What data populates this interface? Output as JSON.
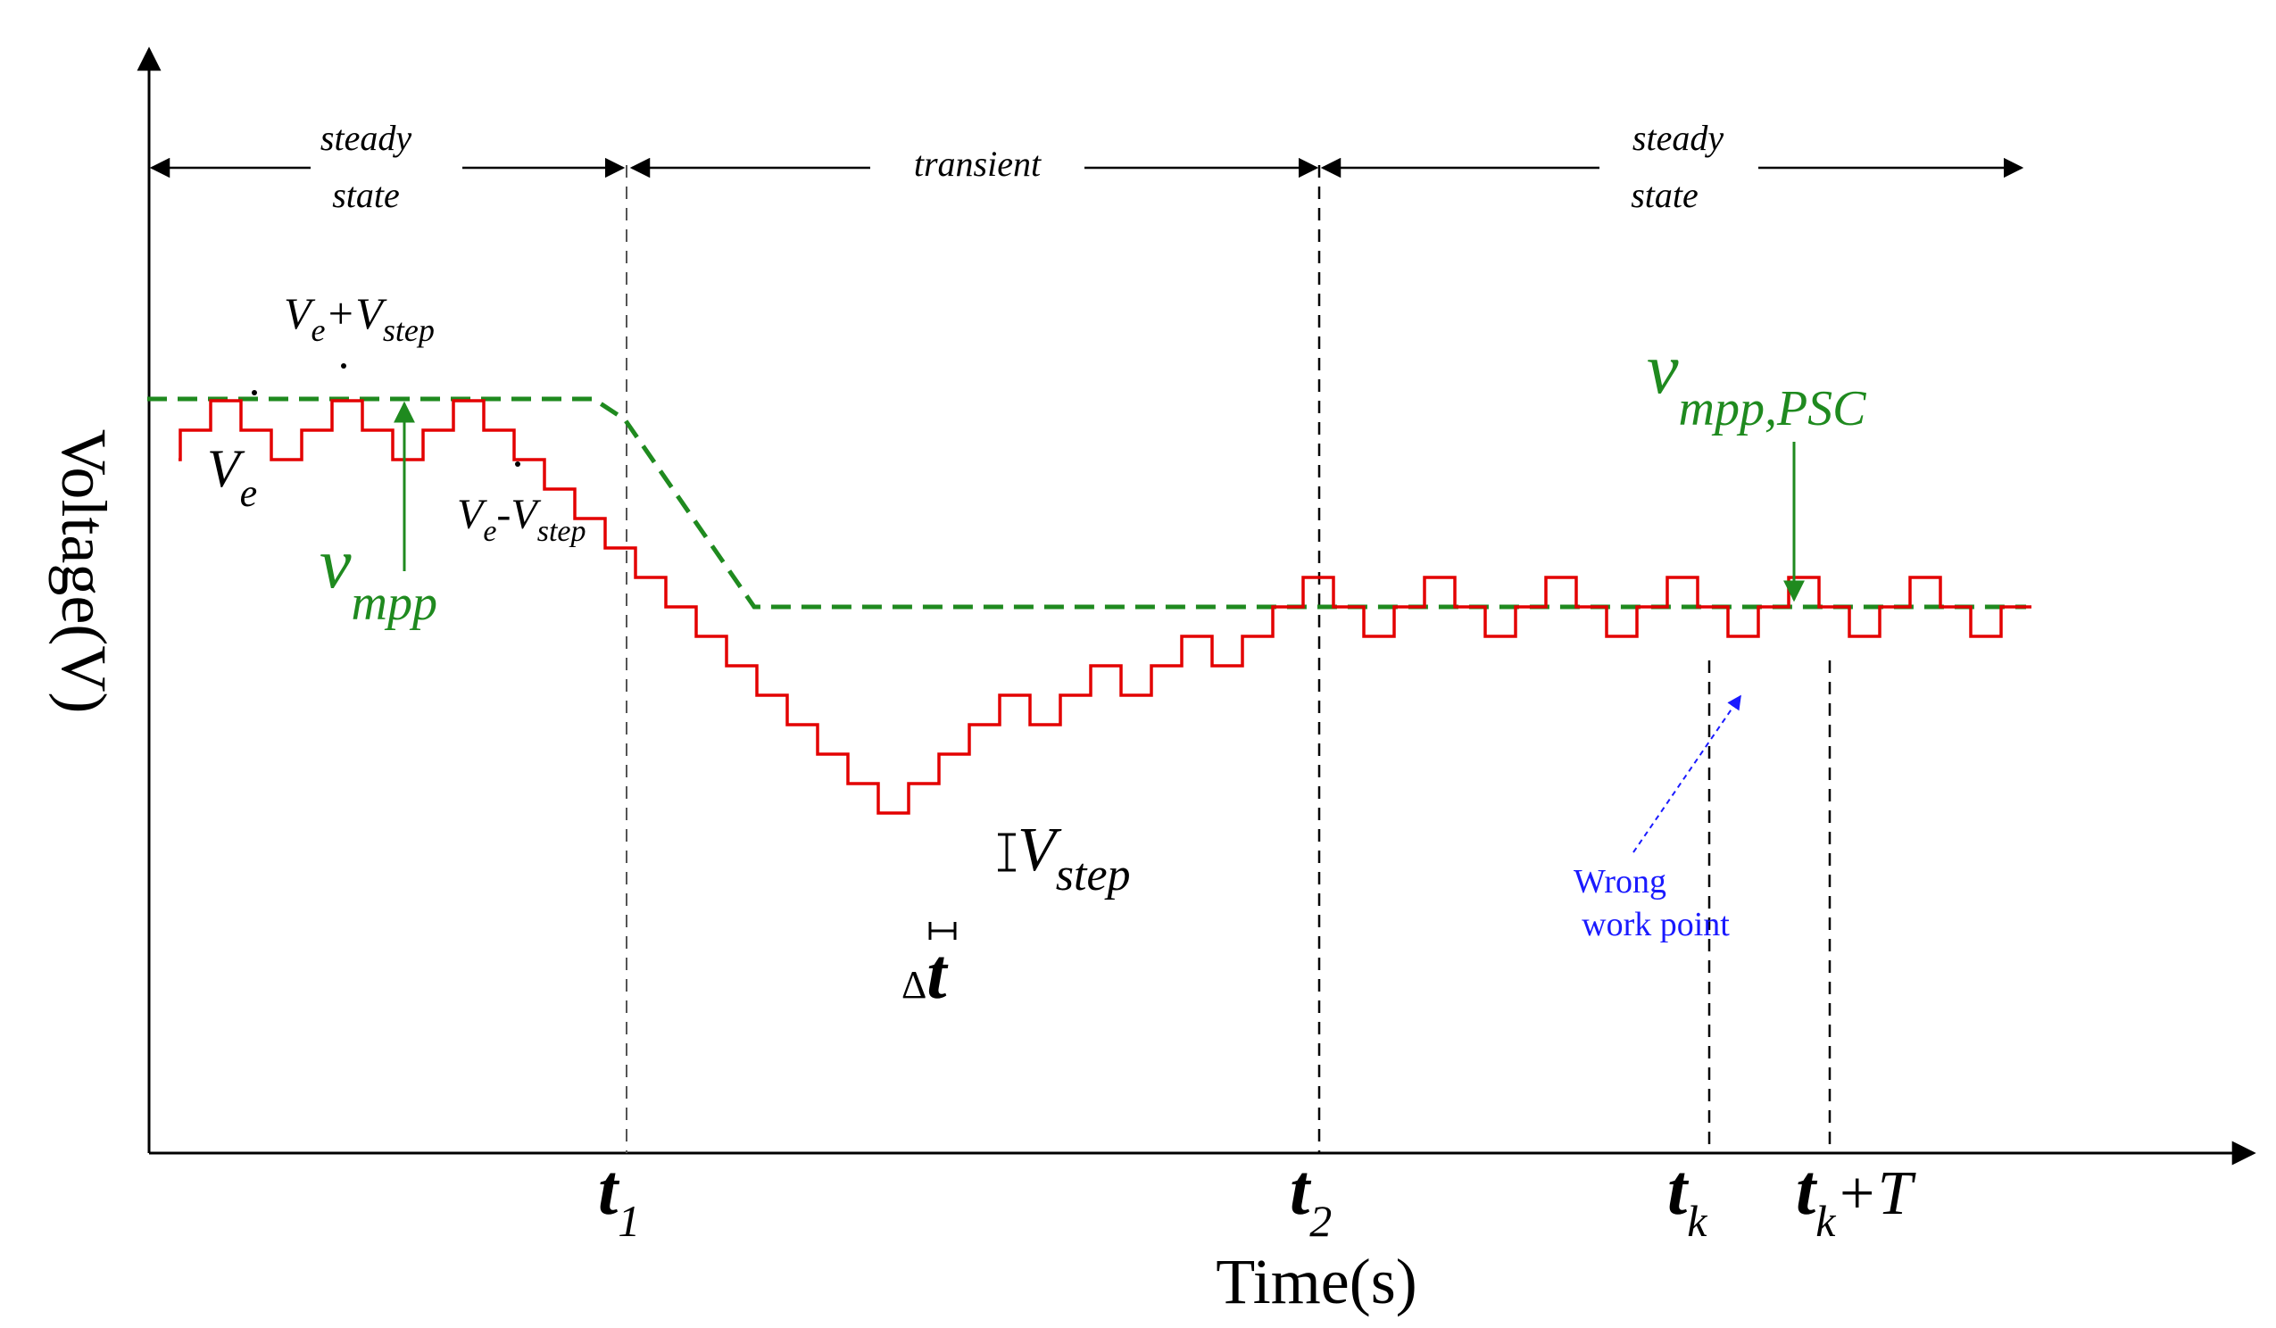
{
  "axes": {
    "x_label": "Time(s)",
    "y_label": "Voltage(V)"
  },
  "regions": {
    "left_steady": {
      "line1": "steady",
      "line2": "state"
    },
    "transient": {
      "label": "transient"
    },
    "right_steady": {
      "line1": "steady",
      "line2": "state"
    }
  },
  "time_markers": {
    "t1": {
      "main": "t",
      "sub": "1"
    },
    "t2": {
      "main": "t",
      "sub": "2"
    },
    "tk": {
      "main": "t",
      "sub": "k"
    },
    "tkT": {
      "main": "t",
      "sub": "k",
      "suffix": "+T"
    }
  },
  "labels": {
    "ve_plus": {
      "v1": "V",
      "sub1": "e",
      "op": "+",
      "v2": "V",
      "sub2": "step"
    },
    "ve": {
      "v": "V",
      "sub": "e"
    },
    "ve_minus": {
      "v1": "V",
      "sub1": "e",
      "op": "-",
      "v2": "V",
      "sub2": "step"
    },
    "vmpp": {
      "v": "v",
      "sub": "mpp"
    },
    "vmpp_psc": {
      "v": "v",
      "sub": "mpp,PSC"
    },
    "vstep": {
      "v": "V",
      "sub": "step"
    },
    "delta_t": {
      "delta": "Δ",
      "t": "t"
    },
    "wrong": {
      "line1": "Wrong",
      "line2": "work point"
    }
  },
  "colors": {
    "signal": "#e30000",
    "mpp": "#1f8a1f",
    "annotation": "#1a1aff",
    "axis": "#000000"
  }
}
